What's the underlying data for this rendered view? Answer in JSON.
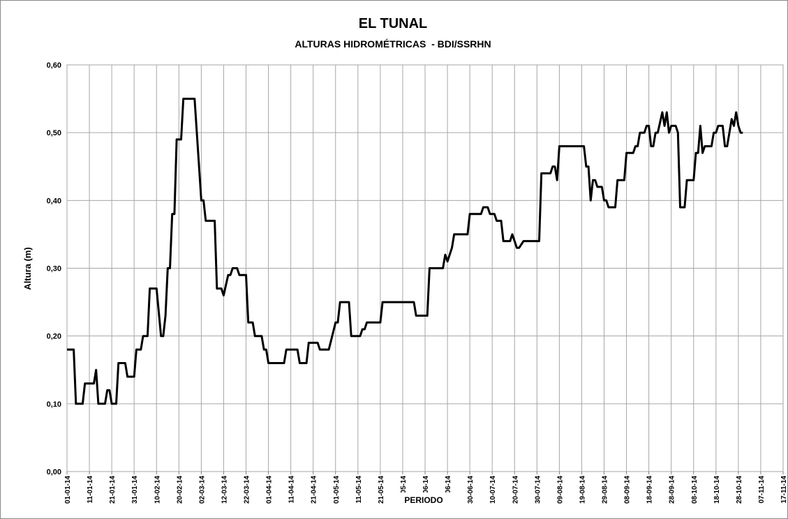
{
  "chart_data": {
    "type": "line",
    "title": "EL TUNAL",
    "subtitle": "ALTURAS HIDROMÉTRICAS  - BDI/SSRHN",
    "xlabel": "PERIODO",
    "ylabel": "Altura (m)",
    "x": [
      "01-01-14",
      "04-01-14",
      "05-01-14",
      "08-01-14",
      "09-01-14",
      "13-01-14",
      "14-01-14",
      "15-01-14",
      "18-01-14",
      "19-01-14",
      "20-01-14",
      "21-01-14",
      "23-01-14",
      "24-01-14",
      "27-01-14",
      "28-01-14",
      "31-01-14",
      "01-02-14",
      "03-02-14",
      "04-02-14",
      "06-02-14",
      "07-02-14",
      "10-02-14",
      "12-02-14",
      "13-02-14",
      "14-02-14",
      "15-02-14",
      "16-02-14",
      "17-02-14",
      "18-02-14",
      "19-02-14",
      "21-02-14",
      "22-02-14",
      "27-02-14",
      "28-02-14",
      "02-03-14",
      "03-03-14",
      "04-03-14",
      "08-03-14",
      "09-03-14",
      "11-03-14",
      "12-03-14",
      "14-03-14",
      "15-03-14",
      "16-03-14",
      "18-03-14",
      "19-03-14",
      "22-03-14",
      "23-03-14",
      "25-03-14",
      "26-03-14",
      "29-03-14",
      "30-03-14",
      "31-03-14",
      "01-04-14",
      "08-04-14",
      "09-04-14",
      "14-04-14",
      "15-04-14",
      "18-04-14",
      "19-04-14",
      "23-04-14",
      "24-04-14",
      "28-04-14",
      "01-05-14",
      "02-05-14",
      "03-05-14",
      "07-05-14",
      "08-05-14",
      "12-05-14",
      "13-05-14",
      "14-05-14",
      "15-05-14",
      "21-05-14",
      "22-05-14",
      "05-06-14",
      "06-06-14",
      "11-06-14",
      "12-06-14",
      "18-06-14",
      "19-06-14",
      "20-06-14",
      "22-06-14",
      "23-06-14",
      "29-06-14",
      "30-06-14",
      "05-07-14",
      "06-07-14",
      "08-07-14",
      "09-07-14",
      "11-07-14",
      "12-07-14",
      "14-07-14",
      "15-07-14",
      "18-07-14",
      "19-07-14",
      "21-07-14",
      "22-07-14",
      "24-07-14",
      "31-07-14",
      "01-08-14",
      "05-08-14",
      "06-08-14",
      "07-08-14",
      "08-08-14",
      "09-08-14",
      "20-08-14",
      "21-08-14",
      "22-08-14",
      "23-08-14",
      "24-08-14",
      "25-08-14",
      "26-08-14",
      "28-08-14",
      "29-08-14",
      "30-08-14",
      "31-08-14",
      "03-09-14",
      "04-09-14",
      "07-09-14",
      "08-09-14",
      "11-09-14",
      "12-09-14",
      "13-09-14",
      "14-09-14",
      "16-09-14",
      "17-09-14",
      "18-09-14",
      "19-09-14",
      "20-09-14",
      "21-09-14",
      "22-09-14",
      "24-09-14",
      "25-09-14",
      "26-09-14",
      "27-09-14",
      "28-09-14",
      "30-09-14",
      "01-10-14",
      "02-10-14",
      "04-10-14",
      "05-10-14",
      "08-10-14",
      "09-10-14",
      "10-10-14",
      "11-10-14",
      "12-10-14",
      "13-10-14",
      "16-10-14",
      "17-10-14",
      "18-10-14",
      "19-10-14",
      "21-10-14",
      "22-10-14",
      "23-10-14",
      "25-10-14",
      "26-10-14",
      "27-10-14",
      "28-10-14",
      "29-10-14",
      "30-10-14"
    ],
    "series": [
      {
        "color": "#000000",
        "values": [
          0.18,
          0.18,
          0.1,
          0.1,
          0.13,
          0.13,
          0.15,
          0.1,
          0.1,
          0.12,
          0.12,
          0.1,
          0.1,
          0.16,
          0.16,
          0.14,
          0.14,
          0.18,
          0.18,
          0.2,
          0.2,
          0.27,
          0.27,
          0.2,
          0.2,
          0.23,
          0.3,
          0.3,
          0.38,
          0.38,
          0.49,
          0.49,
          0.55,
          0.55,
          0.5,
          0.4,
          0.4,
          0.37,
          0.37,
          0.27,
          0.27,
          0.26,
          0.29,
          0.29,
          0.3,
          0.3,
          0.29,
          0.29,
          0.22,
          0.22,
          0.2,
          0.2,
          0.18,
          0.18,
          0.16,
          0.16,
          0.18,
          0.18,
          0.16,
          0.16,
          0.19,
          0.19,
          0.18,
          0.18,
          0.22,
          0.22,
          0.25,
          0.25,
          0.2,
          0.2,
          0.21,
          0.21,
          0.22,
          0.22,
          0.25,
          0.25,
          0.23,
          0.23,
          0.3,
          0.3,
          0.32,
          0.31,
          0.33,
          0.35,
          0.35,
          0.38,
          0.38,
          0.39,
          0.39,
          0.38,
          0.38,
          0.37,
          0.37,
          0.34,
          0.34,
          0.35,
          0.33,
          0.33,
          0.34,
          0.34,
          0.44,
          0.44,
          0.45,
          0.45,
          0.43,
          0.48,
          0.48,
          0.45,
          0.45,
          0.4,
          0.43,
          0.43,
          0.42,
          0.42,
          0.4,
          0.4,
          0.39,
          0.39,
          0.43,
          0.43,
          0.47,
          0.47,
          0.48,
          0.48,
          0.5,
          0.5,
          0.51,
          0.51,
          0.48,
          0.48,
          0.5,
          0.5,
          0.53,
          0.51,
          0.53,
          0.5,
          0.51,
          0.51,
          0.5,
          0.39,
          0.39,
          0.43,
          0.43,
          0.47,
          0.47,
          0.51,
          0.47,
          0.48,
          0.48,
          0.5,
          0.5,
          0.51,
          0.51,
          0.48,
          0.48,
          0.52,
          0.51,
          0.53,
          0.51,
          0.5,
          0.5
        ]
      }
    ],
    "xlim": [
      "01-01-14",
      "17-11-14"
    ],
    "xticks": [
      "01-01-14",
      "11-01-14",
      "21-01-14",
      "31-01-14",
      "10-02-14",
      "20-02-14",
      "02-03-14",
      "12-03-14",
      "22-03-14",
      "01-04-14",
      "11-04-14",
      "21-04-14",
      "01-05-14",
      "11-05-14",
      "21-05-14",
      "31-05-14",
      "10-06-14",
      "20-06-14",
      "30-06-14",
      "10-07-14",
      "20-07-14",
      "30-07-14",
      "09-08-14",
      "19-08-14",
      "29-08-14",
      "08-09-14",
      "18-09-14",
      "28-09-14",
      "08-10-14",
      "18-10-14",
      "28-10-14",
      "07-11-14",
      "17-11-14"
    ],
    "ylim": [
      0,
      0.6
    ],
    "yticks": [
      {
        "value": 0,
        "label": "0,00"
      },
      {
        "value": 0.1,
        "label": "0,10"
      },
      {
        "value": 0.2,
        "label": "0,20"
      },
      {
        "value": 0.3,
        "label": "0,30"
      },
      {
        "value": 0.4,
        "label": "0,40"
      },
      {
        "value": 0.5,
        "label": "0,50"
      },
      {
        "value": 0.6,
        "label": "0,60"
      }
    ],
    "grid": true
  }
}
